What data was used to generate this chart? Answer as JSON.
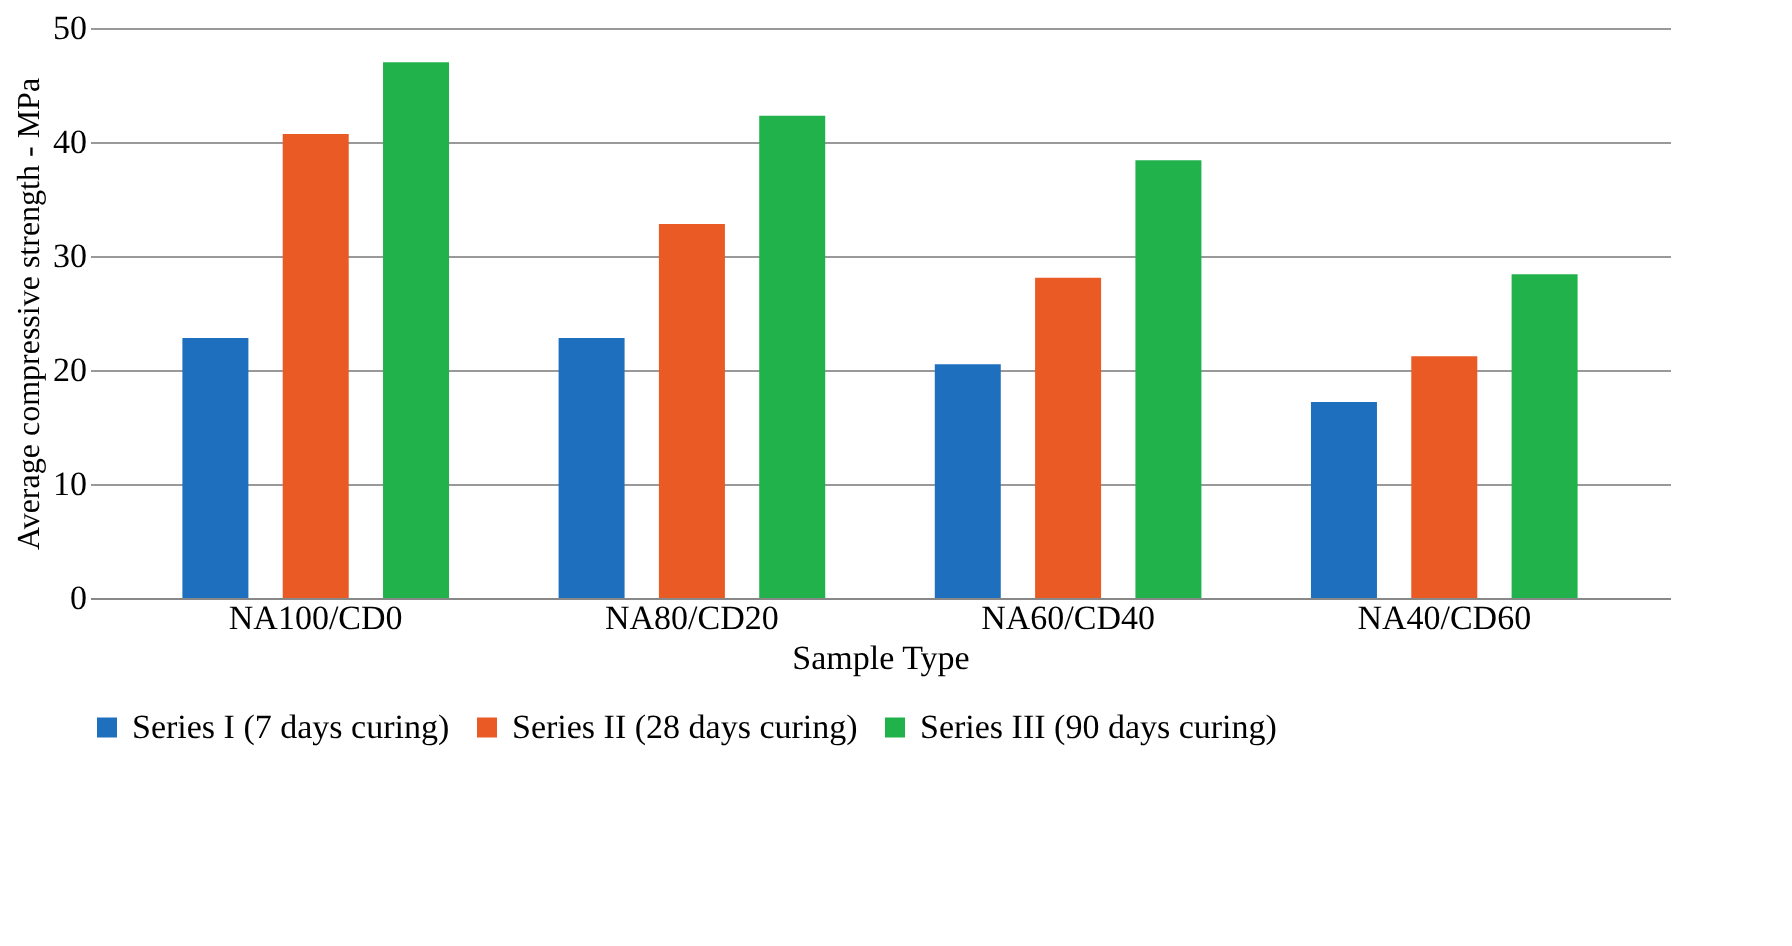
{
  "chart_data": {
    "type": "bar",
    "xlabel": "Sample Type",
    "ylabel": "Average compressive strength - MPa",
    "categories": [
      "NA100/CD0",
      "NA80/CD20",
      "NA60/CD40",
      "NA40/CD60"
    ],
    "series": [
      {
        "name": "Series I (7 days curing)",
        "color": "#1f6fbf",
        "values": [
          22.8,
          22.8,
          20.5,
          17.2
        ]
      },
      {
        "name": "Series II (28 days curing)",
        "color": "#ea5a24",
        "values": [
          40.7,
          32.8,
          28.1,
          21.2
        ]
      },
      {
        "name": "Series III (90 days curing)",
        "color": "#21b24b",
        "values": [
          47.0,
          42.3,
          38.4,
          28.4
        ]
      }
    ],
    "ylim": [
      0,
      50
    ],
    "yticks": [
      0,
      10,
      20,
      30,
      40,
      50
    ],
    "grid": "y",
    "legend": "bottom"
  }
}
